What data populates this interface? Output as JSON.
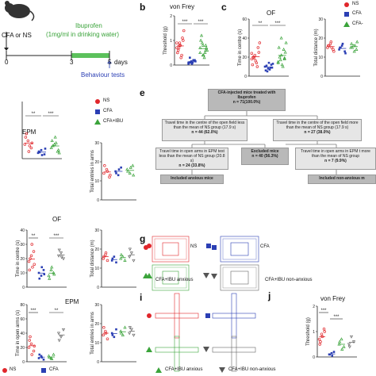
{
  "panel_labels": {
    "b": "b",
    "c": "c",
    "e": "e",
    "g": "g",
    "i": "i",
    "j": "j"
  },
  "panel_a": {
    "cfa_label": "CFA or NS",
    "drug_label": "Ibuprofen",
    "drug_detail": "(1mg/ml in drinking water)",
    "ticks": [
      "0",
      "3",
      "5"
    ],
    "days_label": "days",
    "tests_label": "Behaviour tests"
  },
  "legend_top": {
    "ns": "NS",
    "cfa": "CFA",
    "cfa_ibu": "CFA-"
  },
  "legend_mid": {
    "title": "EPM",
    "ns": "NS",
    "cfa": "CFA",
    "cfa_ibu": "CFA+IBU"
  },
  "titles": {
    "vonfrey_top": "von Frey",
    "of_top": "OF",
    "of_mid": "OF",
    "epm_bottom": "EPM",
    "vonfrey_bottom": "von Frey"
  },
  "axis_labels": {
    "threshold": "Threshold (g)",
    "time_centre": "Time in centre (s)",
    "total_distance": "Total distance (m)",
    "total_entries": "Total entries in arms",
    "time_open_arms": "Time in open arms (s)"
  },
  "significance": {
    "three": "***",
    "two": "**"
  },
  "colors": {
    "ns": "#e0262b",
    "cfa": "#2b3fb4",
    "cfa_ibu": "#3aa33a",
    "anx": "#666666",
    "box": "#dcdcdc",
    "arrow": "#4a5fc1",
    "drug": "#5cc15c"
  },
  "flowchart": {
    "root": "CFA-injected mice treated with Ibuprofen",
    "root_n": "n = 71(100.0%)",
    "left1": "Travel time in the centre of the open field less than the mean of NS group (17.9 s)",
    "left1_n": "n = 44 (62.0%)",
    "right1": "Travel time in the centre of the open field more than the mean of NS group (17.9 s)",
    "right1_n": "n = 27 (38.0%)",
    "left2": "Travel time in open arms in EPM test less than the mean of NS group (20.8 s)",
    "left2_n": "n = 24 (33.8%)",
    "excluded": "Excluded mice",
    "excluded_n": "n = 40 (56.3%)",
    "right2": "Travel time in open arms in EPM t more than the mean of NS group",
    "right2_n": "n = 7 (9.9%)",
    "incl_anx": "Included anxious mice",
    "incl_non": "Included non-anxious m"
  },
  "legend_g": {
    "ns": "NS",
    "cfa": "CFA",
    "cfa_ibu_anx": "CFA+IBU anxious",
    "cfa_ibu_non": "CFA+IBU non-anxious"
  },
  "legend_bottom": {
    "ns": "NS",
    "cfa": "CFA",
    "cfa_ibu_anx": "CFA+IBU anxious",
    "cfa_ibu_non": "CFA+IBU non-anxious"
  },
  "chart_data": [
    {
      "id": "b",
      "type": "scatter",
      "title": "von Frey",
      "ylabel": "Threshold (g)",
      "ylim": [
        0,
        2
      ],
      "yticks": [
        "0",
        "1",
        "2"
      ],
      "series": [
        {
          "name": "NS",
          "values": [
            0.7,
            0.9,
            1.1,
            0.5,
            0.8,
            1.0,
            0.6,
            0.3,
            1.4,
            0.7,
            0.4,
            0.9,
            0.8
          ]
        },
        {
          "name": "CFA",
          "values": [
            0.1,
            0.15,
            0.2,
            0.1,
            0.05,
            0.2,
            0.3,
            0.1,
            0.15,
            0.1,
            0.2,
            0.05
          ]
        },
        {
          "name": "CFA+IBU",
          "values": [
            0.5,
            0.8,
            0.6,
            1.0,
            0.4,
            0.7,
            1.2,
            0.3,
            0.6,
            0.9,
            0.5,
            0.7,
            0.4,
            0.8
          ]
        }
      ]
    },
    {
      "id": "c1",
      "type": "scatter",
      "title": "OF",
      "ylabel": "Time in centre (s)",
      "ylim": [
        0,
        60
      ],
      "yticks": [
        "0",
        "20",
        "40",
        "60"
      ],
      "series": [
        {
          "name": "NS",
          "values": [
            18,
            22,
            30,
            12,
            16,
            25,
            20,
            14,
            35,
            19,
            10,
            24
          ]
        },
        {
          "name": "CFA",
          "values": [
            10,
            8,
            12,
            6,
            14,
            9,
            11,
            7,
            13,
            5,
            9
          ]
        },
        {
          "name": "CFA+IBU",
          "values": [
            15,
            22,
            18,
            30,
            12,
            25,
            20,
            10,
            35,
            17,
            28,
            14,
            40,
            19
          ]
        }
      ]
    },
    {
      "id": "c2",
      "type": "scatter",
      "ylabel": "Total distance (m)",
      "ylim": [
        0,
        30
      ],
      "yticks": [
        "0",
        "10",
        "20",
        "30"
      ],
      "series": [
        {
          "name": "NS",
          "values": [
            15,
            17,
            14,
            16,
            18,
            13,
            16,
            15
          ]
        },
        {
          "name": "CFA",
          "values": [
            14,
            16,
            13,
            15,
            17,
            12,
            15
          ]
        },
        {
          "name": "CFA+IBU",
          "values": [
            15,
            16,
            14,
            17,
            13,
            18,
            15,
            16
          ]
        }
      ]
    },
    {
      "id": "d1",
      "type": "scatter",
      "ylabel": "",
      "ylim": [
        0,
        80
      ],
      "series": [
        {
          "name": "NS",
          "values": [
            20,
            25,
            15,
            30,
            10,
            22,
            35,
            18
          ]
        },
        {
          "name": "CFA",
          "values": [
            8,
            12,
            6,
            10,
            5,
            14,
            9
          ]
        },
        {
          "name": "CFA+IBU",
          "values": [
            15,
            20,
            10,
            25,
            30,
            12,
            18,
            22,
            8
          ]
        }
      ]
    },
    {
      "id": "d2",
      "type": "scatter",
      "ylabel": "Total entries in arms",
      "ylim": [
        0,
        30
      ],
      "yticks": [
        "0",
        "10",
        "20",
        "30"
      ],
      "series": [
        {
          "name": "NS",
          "values": [
            14,
            16,
            12,
            18,
            15,
            13
          ]
        },
        {
          "name": "CFA",
          "values": [
            15,
            13,
            17,
            14,
            16
          ]
        },
        {
          "name": "CFA+IBU",
          "values": [
            16,
            14,
            18,
            15,
            17,
            13
          ]
        }
      ]
    },
    {
      "id": "f1",
      "type": "scatter",
      "title": "OF",
      "ylabel": "Time in centre (s)",
      "ylim": [
        0,
        40
      ],
      "yticks": [
        "0",
        "10",
        "20",
        "30",
        "40"
      ],
      "series": [
        {
          "name": "NS",
          "values": [
            18,
            22,
            25,
            12,
            30,
            16,
            20,
            14
          ]
        },
        {
          "name": "CFA",
          "values": [
            10,
            8,
            12,
            6,
            14,
            9
          ]
        },
        {
          "name": "CFA+IBU anxious",
          "values": [
            8,
            12,
            10,
            6,
            14,
            9
          ]
        },
        {
          "name": "CFA+IBU non-anxious",
          "values": [
            22,
            24,
            20,
            26,
            21
          ]
        }
      ]
    },
    {
      "id": "f2",
      "type": "scatter",
      "ylabel": "Total distance (m)",
      "ylim": [
        0,
        30
      ],
      "yticks": [
        "0",
        "10",
        "20",
        "30"
      ],
      "series": [
        {
          "name": "NS",
          "values": [
            15,
            17,
            14,
            16,
            18
          ]
        },
        {
          "name": "CFA",
          "values": [
            14,
            16,
            13,
            15
          ]
        },
        {
          "name": "CFA+IBU anxious",
          "values": [
            15,
            16,
            14,
            17
          ]
        },
        {
          "name": "CFA+IBU non-anxious",
          "values": [
            16,
            18,
            14,
            20
          ]
        }
      ]
    },
    {
      "id": "h1",
      "type": "scatter",
      "title": "EPM",
      "ylabel": "Time in open arms (s)",
      "ylim": [
        0,
        80
      ],
      "yticks": [
        "0",
        "20",
        "40",
        "60",
        "80"
      ],
      "series": [
        {
          "name": "NS",
          "values": [
            20,
            25,
            15,
            30,
            10,
            22,
            35
          ]
        },
        {
          "name": "CFA",
          "values": [
            5,
            8,
            3,
            10,
            6
          ]
        },
        {
          "name": "CFA+IBU anxious",
          "values": [
            8,
            5,
            10,
            6,
            4
          ]
        },
        {
          "name": "CFA+IBU non-anxious",
          "values": [
            40,
            35,
            45,
            30
          ]
        }
      ]
    },
    {
      "id": "h2",
      "type": "scatter",
      "ylabel": "Total entries in arms",
      "ylim": [
        0,
        30
      ],
      "yticks": [
        "0",
        "10",
        "20",
        "30"
      ],
      "series": [
        {
          "name": "NS",
          "values": [
            14,
            16,
            12,
            18,
            15
          ]
        },
        {
          "name": "CFA",
          "values": [
            15,
            13,
            17,
            14
          ]
        },
        {
          "name": "CFA+IBU anxious",
          "values": [
            16,
            14,
            18,
            15
          ]
        },
        {
          "name": "CFA+IBU non-anxious",
          "values": [
            15,
            17,
            14,
            18
          ]
        }
      ]
    },
    {
      "id": "j",
      "type": "scatter",
      "title": "von Frey",
      "ylabel": "Threshold (g)",
      "ylim": [
        0,
        2
      ],
      "yticks": [
        "0",
        "1",
        "2"
      ],
      "series": [
        {
          "name": "NS",
          "values": [
            0.7,
            0.9,
            1.1,
            0.5,
            0.8,
            1.0,
            0.6
          ]
        },
        {
          "name": "CFA",
          "values": [
            0.1,
            0.15,
            0.2,
            0.1,
            0.05
          ]
        },
        {
          "name": "CFA+IBU anxious",
          "values": [
            0.5,
            0.7,
            0.4,
            0.6,
            0.3
          ]
        },
        {
          "name": "CFA+IBU non-anxious",
          "values": [
            0.5,
            0.8,
            0.6,
            0.4
          ]
        }
      ]
    }
  ]
}
